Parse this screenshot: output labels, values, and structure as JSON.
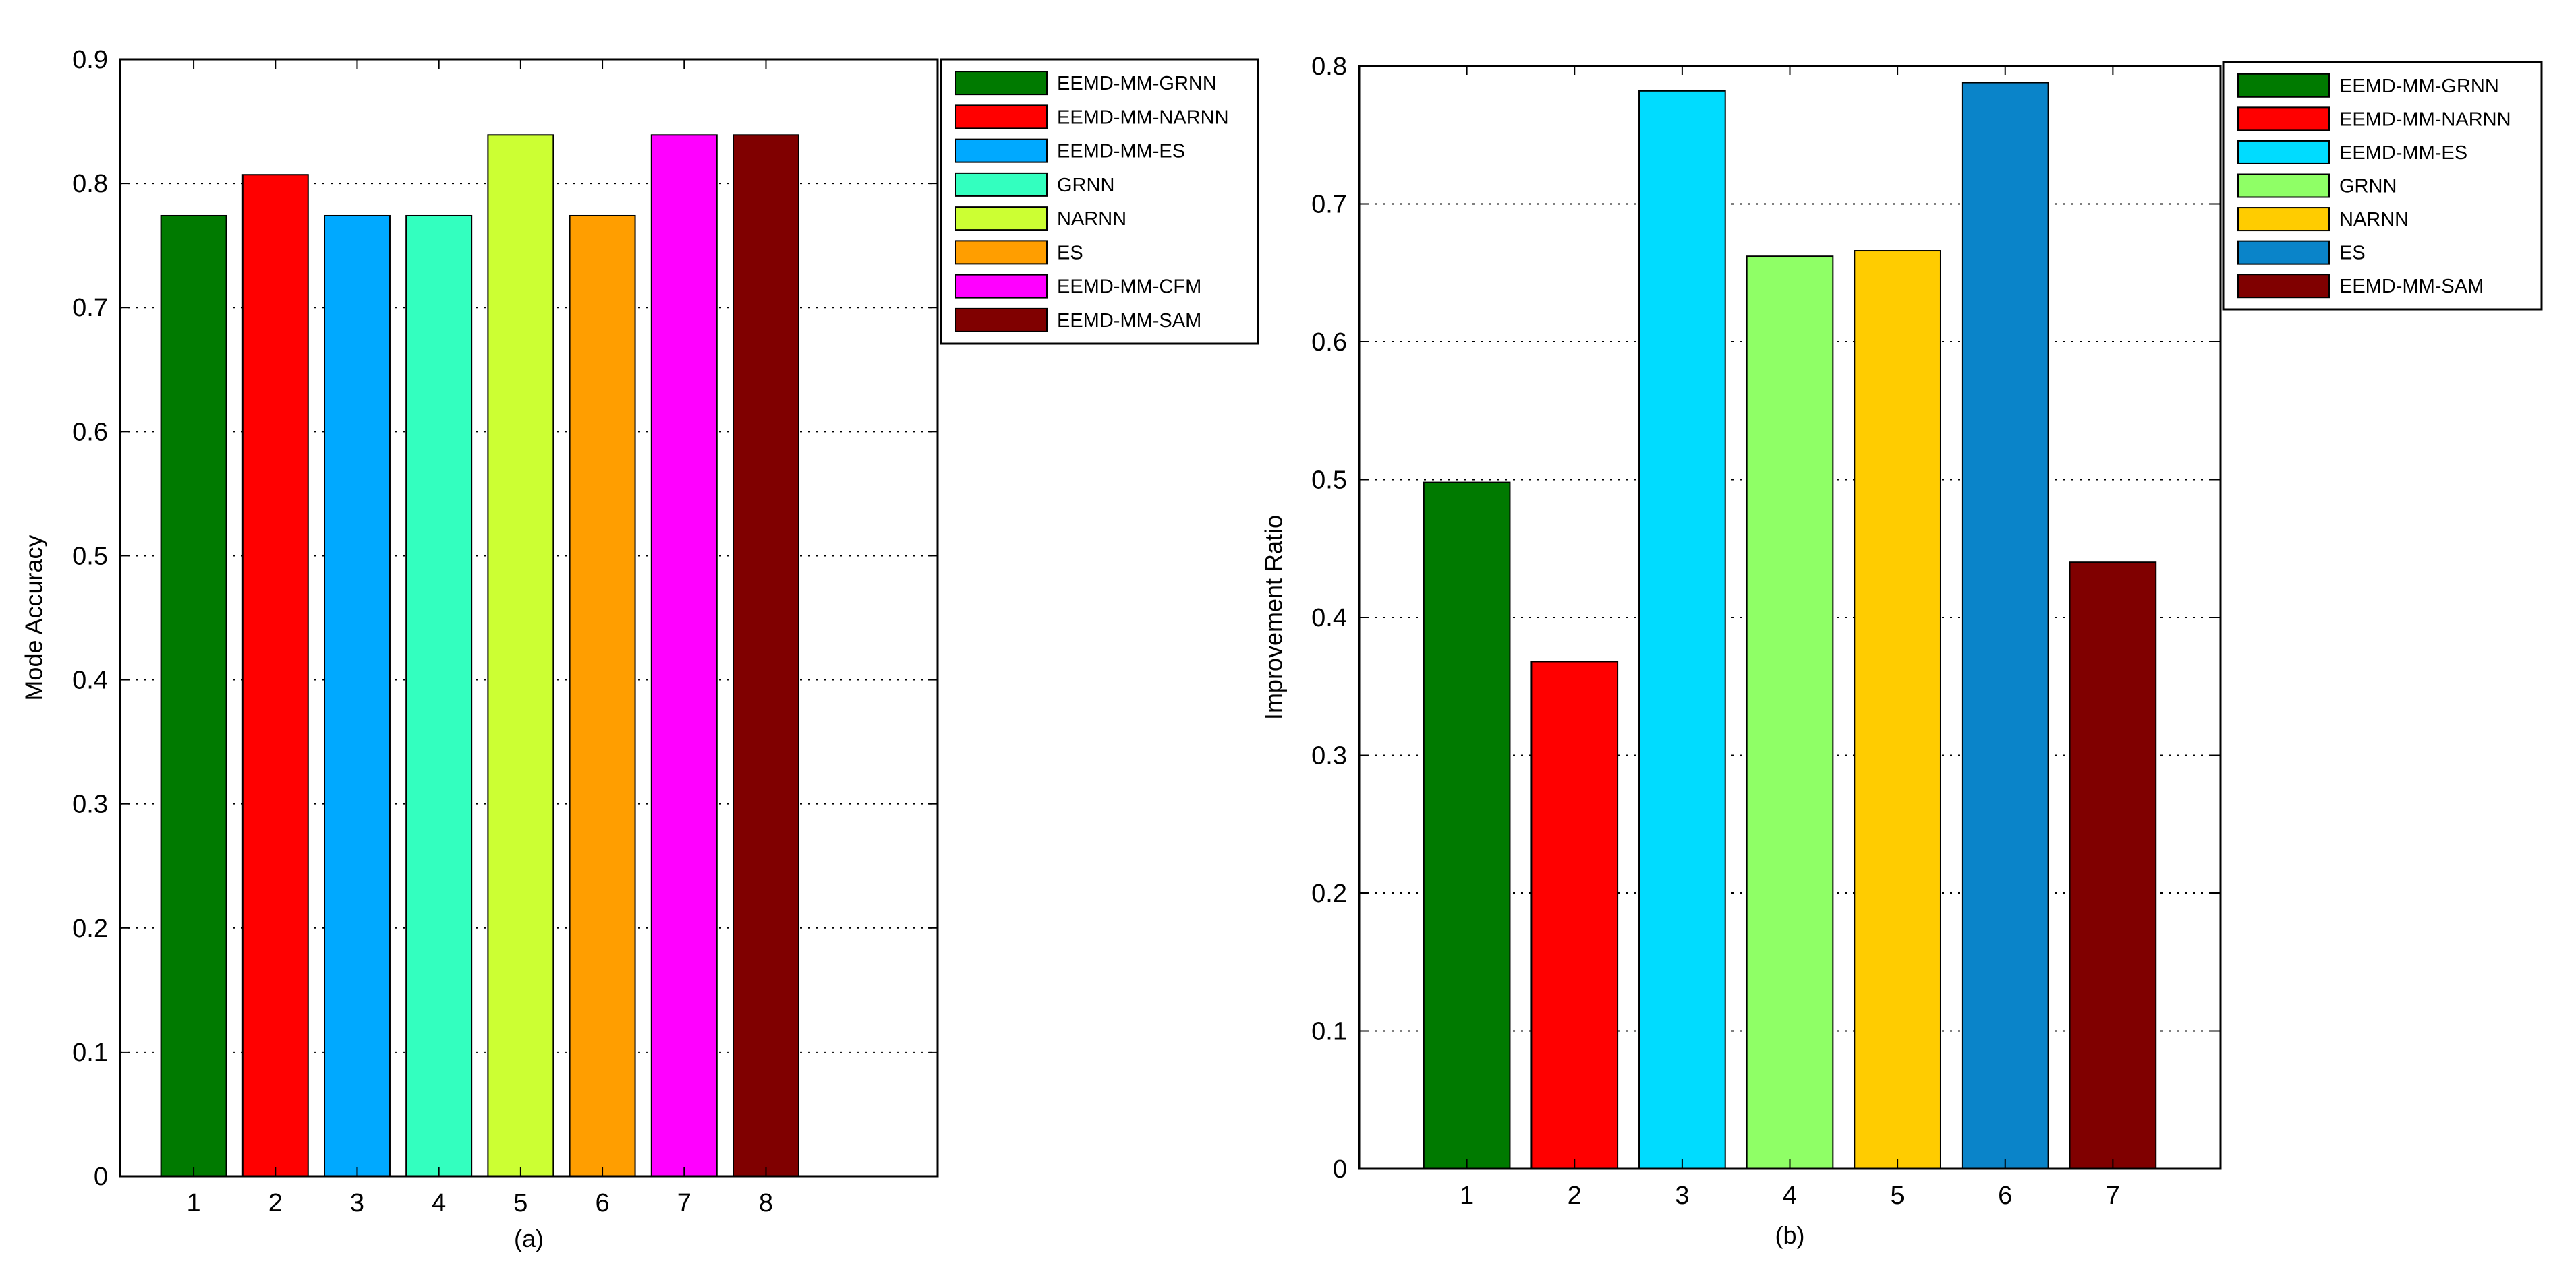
{
  "chart_data": [
    {
      "id": "a",
      "type": "bar",
      "caption": "(a)",
      "ylabel": "Mode Accuracy",
      "xlabel": "",
      "xlim": [
        0.1,
        10.1
      ],
      "ylim": [
        0,
        0.9
      ],
      "yticks": [
        0,
        0.1,
        0.2,
        0.3,
        0.4,
        0.5,
        0.6,
        0.7,
        0.8,
        0.9
      ],
      "grid": "horizontal-dotted",
      "legend_position": "top-right-outside",
      "categories": [
        "1",
        "2",
        "3",
        "4",
        "5",
        "6",
        "7",
        "8"
      ],
      "values": [
        0.774,
        0.807,
        0.774,
        0.774,
        0.839,
        0.774,
        0.839,
        0.839
      ],
      "series_names": [
        "EEMD-MM-GRNN",
        "EEMD-MM-NARNN",
        "EEMD-MM-ES",
        "GRNN",
        "NARNN",
        "ES",
        "EEMD-MM-CFM",
        "EEMD-MM-SAM"
      ],
      "colors": [
        "#007a00",
        "#ff0000",
        "#00a9ff",
        "#33ffbf",
        "#ccff33",
        "#ff9e00",
        "#ff00ff",
        "#800000"
      ]
    },
    {
      "id": "b",
      "type": "bar",
      "caption": "(b)",
      "ylabel": "Improvement Ratio",
      "xlabel": "",
      "xlim": [
        0,
        8
      ],
      "ylim": [
        0,
        0.8
      ],
      "yticks": [
        0,
        0.1,
        0.2,
        0.3,
        0.4,
        0.5,
        0.6,
        0.7,
        0.8
      ],
      "grid": "horizontal-dotted",
      "legend_position": "top-right-outside",
      "categories": [
        "1",
        "2",
        "3",
        "4",
        "5",
        "6",
        "7"
      ],
      "values": [
        0.498,
        0.368,
        0.782,
        0.662,
        0.666,
        0.788,
        0.44
      ],
      "series_names": [
        "EEMD-MM-GRNN",
        "EEMD-MM-NARNN",
        "EEMD-MM-ES",
        "GRNN",
        "NARNN",
        "ES",
        "EEMD-MM-SAM"
      ],
      "colors": [
        "#007a00",
        "#ff0000",
        "#00dcff",
        "#8fff66",
        "#ffcc00",
        "#0a84c9",
        "#800000"
      ]
    }
  ]
}
